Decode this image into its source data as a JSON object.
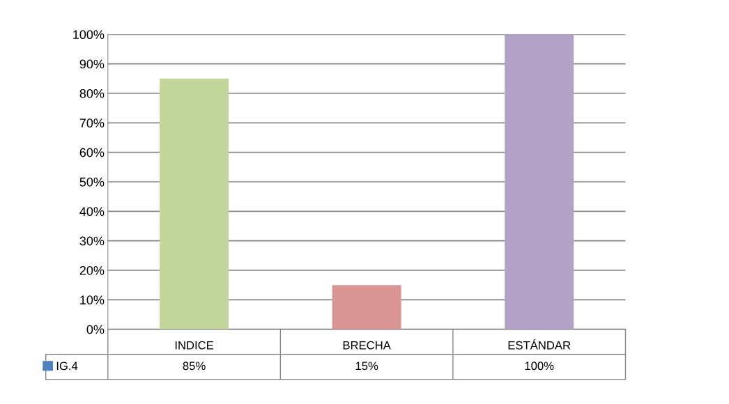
{
  "chart_data": {
    "type": "bar",
    "categories": [
      "INDICE",
      "BRECHA",
      "ESTÁNDAR"
    ],
    "series": [
      {
        "name": "IG.4",
        "color": "#4f81bd",
        "colors": [
          "#c3d69b",
          "#d99694",
          "#b3a2c7"
        ],
        "values": [
          85,
          15,
          100
        ]
      }
    ],
    "value_labels": [
      "85%",
      "15%",
      "100%"
    ],
    "ylim": [
      0,
      100
    ],
    "yticks": [
      {
        "value": 0,
        "label": "0%"
      },
      {
        "value": 10,
        "label": "10%"
      },
      {
        "value": 20,
        "label": "20%"
      },
      {
        "value": 30,
        "label": "30%"
      },
      {
        "value": 40,
        "label": "40%"
      },
      {
        "value": 50,
        "label": "50%"
      },
      {
        "value": 60,
        "label": "60%"
      },
      {
        "value": 70,
        "label": "70%"
      },
      {
        "value": 80,
        "label": "80%"
      },
      {
        "value": 90,
        "label": "90%"
      },
      {
        "value": 100,
        "label": "100%"
      }
    ],
    "grid": "y",
    "legend": "bottom left"
  }
}
